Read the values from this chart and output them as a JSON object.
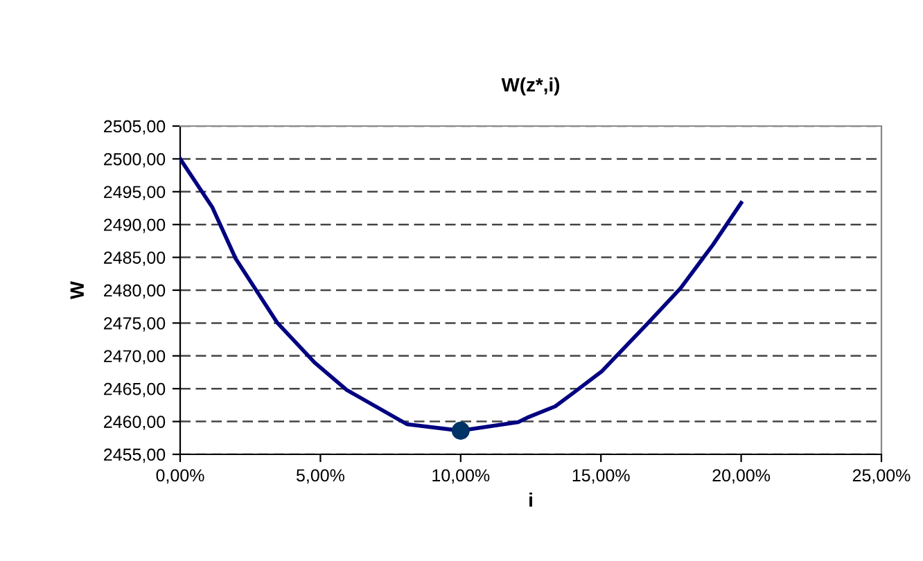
{
  "chart_data": {
    "type": "line",
    "title": "W(z*,i)",
    "xlabel": "i",
    "ylabel": "W",
    "series": [
      {
        "color": "#000080",
        "marker": "none",
        "x": [
          0,
          1.15,
          1.98,
          3.47,
          4.79,
          5.94,
          8.08,
          10,
          12.05,
          12.38,
          13.37,
          14.03,
          15.02,
          16.68,
          17.84,
          18.99,
          20
        ],
        "values": [
          2500,
          2492.6,
          2484.8,
          2475.0,
          2469.0,
          2464.8,
          2459.6,
          2458.6,
          2459.9,
          2460.6,
          2462.3,
          2464.4,
          2467.6,
          2475.0,
          2480.3,
          2486.9,
          2493.3
        ]
      },
      {
        "type": "scatter",
        "color": "#003366",
        "marker": "circle",
        "x": [
          10
        ],
        "values": [
          2458.6
        ]
      }
    ],
    "xlim": [
      0,
      25
    ],
    "xticks": [
      {
        "value": 0,
        "label": "0,00%"
      },
      {
        "value": 5,
        "label": "5,00%"
      },
      {
        "value": 10,
        "label": "10,00%"
      },
      {
        "value": 15,
        "label": "15,00%"
      },
      {
        "value": 20,
        "label": "20,00%"
      },
      {
        "value": 25,
        "label": "25,00%"
      }
    ],
    "ylim": [
      2455,
      2505
    ],
    "yticks": [
      {
        "value": 2455,
        "label": "2455,00"
      },
      {
        "value": 2460,
        "label": "2460,00"
      },
      {
        "value": 2465,
        "label": "2465,00"
      },
      {
        "value": 2470,
        "label": "2470,00"
      },
      {
        "value": 2475,
        "label": "2475,00"
      },
      {
        "value": 2480,
        "label": "2480,00"
      },
      {
        "value": 2485,
        "label": "2485,00"
      },
      {
        "value": 2490,
        "label": "2490,00"
      },
      {
        "value": 2495,
        "label": "2495,00"
      },
      {
        "value": 2500,
        "label": "2500,00"
      },
      {
        "value": 2505,
        "label": "2505,00"
      }
    ],
    "grid": "y",
    "legend": false
  }
}
